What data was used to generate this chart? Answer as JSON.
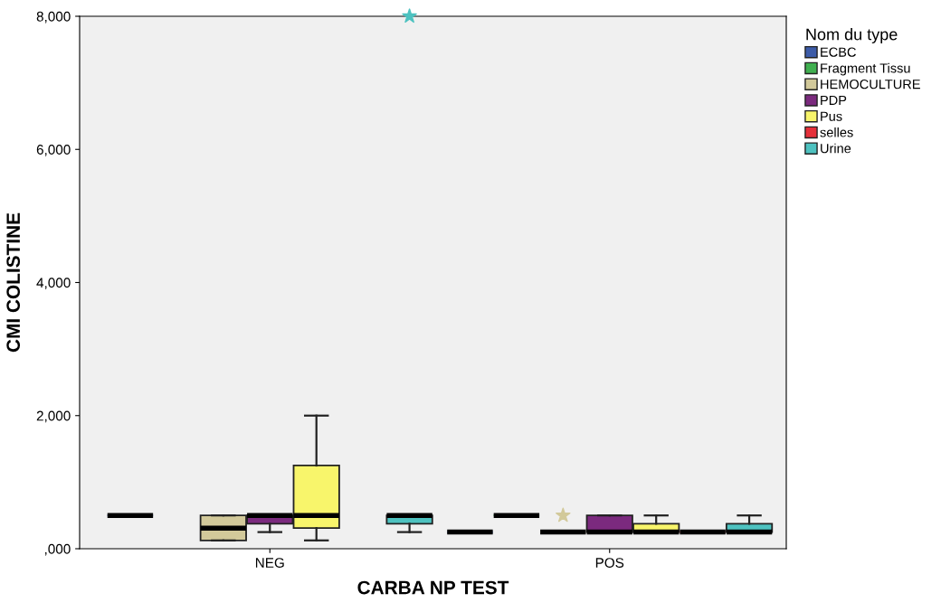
{
  "chart_data": {
    "type": "box",
    "xlabel": "CARBA NP TEST",
    "ylabel": "CMI COLISTINE",
    "legend_title": "Nom du type",
    "legend": "right",
    "marker": "star",
    "grid": false,
    "categories": [
      "NEG",
      "POS"
    ],
    "ylim": [
      0,
      8000
    ],
    "yticks": [
      {
        "value": 0,
        "label": ",000"
      },
      {
        "value": 2000,
        "label": "2,000"
      },
      {
        "value": 4000,
        "label": "4,000"
      },
      {
        "value": 6000,
        "label": "6,000"
      },
      {
        "value": 8000,
        "label": "8,000"
      }
    ],
    "series": [
      {
        "name": "ECBC",
        "color": "#3d5ca8",
        "boxes": [
          {
            "low": 500,
            "q1": 500,
            "median": 500,
            "q3": 500,
            "high": 500
          },
          {
            "low": 250,
            "q1": 250,
            "median": 250,
            "q3": 250,
            "high": 250
          }
        ]
      },
      {
        "name": "Fragment Tissu",
        "color": "#40b050",
        "boxes": [
          null,
          {
            "low": 500,
            "q1": 500,
            "median": 500,
            "q3": 500,
            "high": 500
          }
        ]
      },
      {
        "name": "HEMOCULTURE",
        "color": "#d2c99a",
        "boxes": [
          {
            "low": 125,
            "q1": 125,
            "median": 310,
            "q3": 500,
            "high": 500
          },
          {
            "low": 250,
            "q1": 250,
            "median": 250,
            "q3": 250,
            "high": 250,
            "outliers": [
              500
            ]
          }
        ]
      },
      {
        "name": "PDP",
        "color": "#7b2a7e",
        "boxes": [
          {
            "low": 250,
            "q1": 375,
            "median": 500,
            "q3": 500,
            "high": 500
          },
          {
            "low": 250,
            "q1": 250,
            "median": 250,
            "q3": 500,
            "high": 500
          }
        ]
      },
      {
        "name": "Pus",
        "color": "#f8f56b",
        "boxes": [
          {
            "low": 125,
            "q1": 310,
            "median": 500,
            "q3": 1250,
            "high": 2000
          },
          {
            "low": 250,
            "q1": 250,
            "median": 250,
            "q3": 375,
            "high": 500
          }
        ]
      },
      {
        "name": "selles",
        "color": "#e5303a",
        "boxes": [
          null,
          {
            "low": 250,
            "q1": 250,
            "median": 250,
            "q3": 250,
            "high": 250
          }
        ]
      },
      {
        "name": "Urine",
        "color": "#4ec2c0",
        "boxes": [
          {
            "low": 250,
            "q1": 375,
            "median": 500,
            "q3": 500,
            "high": 500,
            "outliers": [
              8000
            ]
          },
          {
            "low": 250,
            "q1": 250,
            "median": 250,
            "q3": 375,
            "high": 500
          }
        ]
      }
    ]
  }
}
